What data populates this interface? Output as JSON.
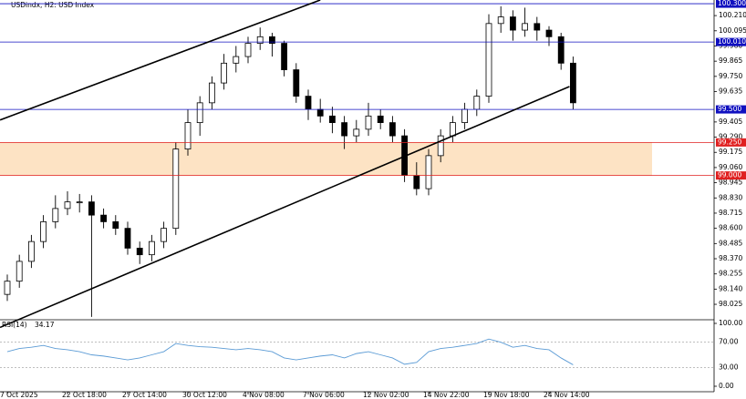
{
  "chart_data": {
    "type": "candlestick",
    "title": "USDindx, H2: USD Index",
    "categories": [
      "7 Oct 2025",
      null,
      null,
      null,
      null,
      "22 Oct 18:00",
      null,
      null,
      null,
      null,
      "27 Oct 14:00",
      null,
      null,
      null,
      null,
      "30 Oct 12:00",
      null,
      null,
      null,
      null,
      "4 Nov 08:00",
      null,
      null,
      null,
      null,
      "7 Nov 06:00",
      null,
      null,
      null,
      null,
      "12 Nov 02:00",
      null,
      null,
      null,
      null,
      "14 Nov 22:00",
      null,
      null,
      null,
      null,
      "19 Nov 18:00",
      null,
      null,
      null,
      null,
      "24 Nov 14:00",
      null,
      null
    ],
    "candles": [
      [
        98.1,
        98.25,
        98.05,
        98.2
      ],
      [
        98.2,
        98.4,
        98.15,
        98.35
      ],
      [
        98.35,
        98.55,
        98.3,
        98.5
      ],
      [
        98.5,
        98.7,
        98.45,
        98.65
      ],
      [
        98.65,
        98.85,
        98.6,
        98.75
      ],
      [
        98.75,
        98.88,
        98.7,
        98.8
      ],
      [
        98.8,
        98.86,
        98.72,
        98.8
      ],
      [
        98.8,
        98.85,
        97.93,
        98.7
      ],
      [
        98.7,
        98.75,
        98.6,
        98.65
      ],
      [
        98.65,
        98.7,
        98.55,
        98.6
      ],
      [
        98.6,
        98.65,
        98.4,
        98.45
      ],
      [
        98.45,
        98.5,
        98.33,
        98.4
      ],
      [
        98.4,
        98.55,
        98.35,
        98.5
      ],
      [
        98.5,
        98.65,
        98.45,
        98.6
      ],
      [
        98.6,
        99.25,
        98.55,
        99.2
      ],
      [
        99.2,
        99.5,
        99.15,
        99.4
      ],
      [
        99.4,
        99.6,
        99.3,
        99.55
      ],
      [
        99.55,
        99.75,
        99.5,
        99.7
      ],
      [
        99.7,
        99.92,
        99.65,
        99.85
      ],
      [
        99.85,
        99.98,
        99.78,
        99.9
      ],
      [
        99.9,
        100.05,
        99.85,
        100.0
      ],
      [
        100.0,
        100.12,
        99.95,
        100.05
      ],
      [
        100.05,
        100.08,
        99.9,
        100.0
      ],
      [
        100.0,
        100.02,
        99.75,
        99.8
      ],
      [
        99.8,
        99.85,
        99.55,
        99.6
      ],
      [
        99.6,
        99.65,
        99.42,
        99.5
      ],
      [
        99.5,
        99.58,
        99.4,
        99.45
      ],
      [
        99.45,
        99.52,
        99.32,
        99.4
      ],
      [
        99.4,
        99.45,
        99.2,
        99.3
      ],
      [
        99.3,
        99.42,
        99.25,
        99.35
      ],
      [
        99.35,
        99.55,
        99.3,
        99.45
      ],
      [
        99.45,
        99.5,
        99.35,
        99.4
      ],
      [
        99.4,
        99.45,
        99.25,
        99.3
      ],
      [
        99.3,
        99.35,
        98.95,
        99.0
      ],
      [
        99.0,
        99.1,
        98.85,
        98.9
      ],
      [
        98.9,
        99.2,
        98.85,
        99.15
      ],
      [
        99.15,
        99.35,
        99.1,
        99.3
      ],
      [
        99.3,
        99.45,
        99.25,
        99.4
      ],
      [
        99.4,
        99.55,
        99.35,
        99.5
      ],
      [
        99.5,
        99.65,
        99.45,
        99.6
      ],
      [
        99.6,
        100.22,
        99.55,
        100.15
      ],
      [
        100.15,
        100.28,
        100.08,
        100.2
      ],
      [
        100.2,
        100.25,
        100.02,
        100.1
      ],
      [
        100.1,
        100.27,
        100.05,
        100.15
      ],
      [
        100.15,
        100.2,
        100.02,
        100.1
      ],
      [
        100.1,
        100.13,
        99.98,
        100.05
      ],
      [
        100.05,
        100.08,
        99.8,
        99.85
      ],
      [
        99.85,
        99.9,
        99.5,
        99.55
      ]
    ],
    "ylim": [
      97.915,
      100.328
    ],
    "yticks": [
      {
        "value": 100.21,
        "label": "100.210"
      },
      {
        "value": 100.095,
        "label": "100.095"
      },
      {
        "value": 99.98,
        "label": "99.980"
      },
      {
        "value": 99.865,
        "label": "99.865"
      },
      {
        "value": 99.75,
        "label": "99.750"
      },
      {
        "value": 99.635,
        "label": "99.635"
      },
      {
        "value": 99.405,
        "label": "99.405"
      },
      {
        "value": 99.29,
        "label": "99.290"
      },
      {
        "value": 99.175,
        "label": "99.175"
      },
      {
        "value": 99.06,
        "label": "99.060"
      },
      {
        "value": 98.945,
        "label": "98.945"
      },
      {
        "value": 98.83,
        "label": "98.830"
      },
      {
        "value": 98.715,
        "label": "98.715"
      },
      {
        "value": 98.6,
        "label": "98.600"
      },
      {
        "value": 98.485,
        "label": "98.485"
      },
      {
        "value": 98.37,
        "label": "98.370"
      },
      {
        "value": 98.255,
        "label": "98.255"
      },
      {
        "value": 98.14,
        "label": "98.140"
      },
      {
        "value": 98.025,
        "label": "98.025"
      }
    ],
    "levels": [
      {
        "value": 100.3,
        "label": "100.300",
        "color": "#1010c0"
      },
      {
        "value": 100.01,
        "label": "100.010",
        "color": "#1010c0"
      },
      {
        "value": 99.5,
        "label": "99.500",
        "color": "#1010c0"
      },
      {
        "value": 99.25,
        "label": "99.250",
        "color": "#e02020"
      },
      {
        "value": 99.0,
        "label": "99.000",
        "color": "#e02020"
      }
    ],
    "zone_color": "#fde3c4",
    "trendlines": [
      [
        [
          -0.6,
          99.42
        ],
        [
          26,
          100.328
        ]
      ],
      [
        [
          -0.6,
          97.85
        ],
        [
          46.7,
          99.673
        ]
      ]
    ],
    "rsi": {
      "name": "RSI(14)",
      "color": "#5b9bd5",
      "values": [
        55,
        60,
        62,
        65,
        60,
        58,
        55,
        50,
        48,
        45,
        42,
        45,
        50,
        55,
        68,
        65,
        63,
        62,
        60,
        58,
        60,
        58,
        55,
        45,
        42,
        45,
        48,
        50,
        45,
        52,
        55,
        50,
        45,
        35,
        38,
        55,
        60,
        62,
        65,
        68,
        75,
        70,
        62,
        65,
        60,
        58,
        45,
        34.17
      ],
      "ylim": [
        0,
        100
      ],
      "yticks": [
        {
          "value": 100,
          "label": "100.00"
        },
        {
          "value": 70,
          "label": "70.00"
        },
        {
          "value": 30,
          "label": "30.00"
        },
        {
          "value": 0,
          "label": "0.00"
        }
      ]
    }
  }
}
